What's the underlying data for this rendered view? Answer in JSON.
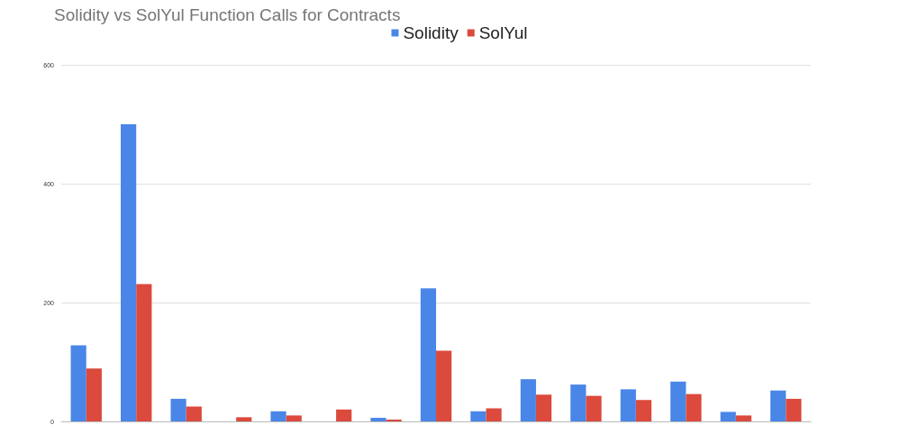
{
  "chart_data": {
    "type": "bar",
    "title": "Solidity vs SolYul Function Calls for Contracts",
    "categories": [
      null,
      null,
      null,
      null,
      null,
      null,
      null,
      null,
      null,
      null,
      null,
      null,
      null,
      null,
      null
    ],
    "series": [
      {
        "name": "Solidity",
        "color": "#4a86e8",
        "values": [
          128,
          500,
          38,
          0,
          17,
          0,
          6,
          224,
          17,
          71,
          62,
          54,
          67,
          16,
          52
        ]
      },
      {
        "name": "SolYul",
        "color": "#db4a3c",
        "values": [
          89,
          231,
          25,
          7,
          10,
          20,
          3,
          119,
          22,
          45,
          43,
          36,
          46,
          10,
          38
        ]
      }
    ],
    "ylim": [
      0,
      600
    ],
    "yticks": [
      0,
      200,
      400,
      600
    ],
    "grid": "y",
    "legend": "top",
    "tick_labels": "y"
  }
}
